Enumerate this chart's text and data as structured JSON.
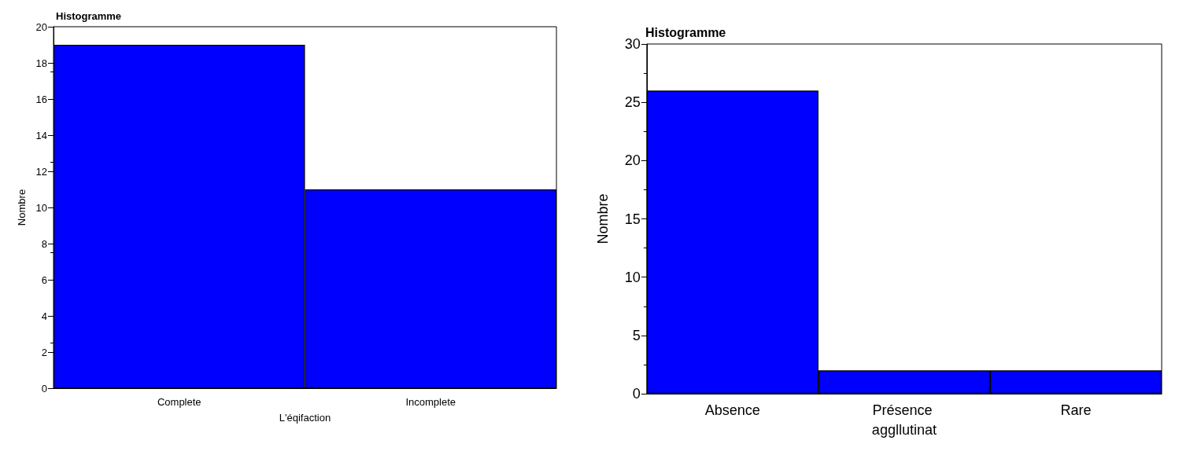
{
  "chart_data": [
    {
      "type": "bar",
      "title": "Histogramme",
      "xlabel": "L'éqifaction",
      "ylabel": "Nombre",
      "categories": [
        "Complete",
        "Incomplete"
      ],
      "values": [
        19,
        11
      ],
      "color": "#0000ff",
      "ylim": [
        0,
        20
      ],
      "yticks": [
        0,
        2,
        4,
        6,
        8,
        10,
        12,
        14,
        16,
        18,
        20
      ],
      "grid": false
    },
    {
      "type": "bar",
      "title": "Histogramme",
      "ylabel": "Nombre",
      "categories": [
        "Absence",
        "Présence aggllutinat",
        "Rare"
      ],
      "values": [
        26,
        2,
        2
      ],
      "color": "#0000ff",
      "ylim": [
        0,
        30
      ],
      "yticks": [
        0,
        5,
        10,
        15,
        20,
        25,
        30
      ],
      "grid": false
    }
  ]
}
